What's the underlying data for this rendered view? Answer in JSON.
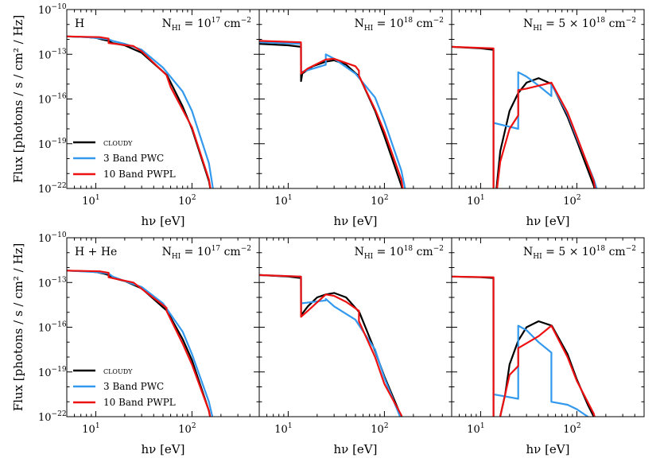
{
  "figure": {
    "ylabel": "Flux [photons / s / cm² / Hz]",
    "xlabel": "hν [eV]"
  },
  "legend": [
    {
      "label": "cloudy",
      "color": "#000000"
    },
    {
      "label": "3 Band PWC",
      "color": "#3399ee"
    },
    {
      "label": "10 Band PWPL",
      "color": "#ee1111"
    }
  ],
  "y_ticks": [
    {
      "exp": -10,
      "label_base": "10",
      "label_exp": "−10"
    },
    {
      "exp": -13,
      "label_base": "10",
      "label_exp": "−13"
    },
    {
      "exp": -16,
      "label_base": "10",
      "label_exp": "−16"
    },
    {
      "exp": -19,
      "label_base": "10",
      "label_exp": "−19"
    },
    {
      "exp": -22,
      "label_base": "10",
      "label_exp": "−22"
    }
  ],
  "x_ticks": [
    {
      "value": 10,
      "label_base": "10",
      "label_exp": "1"
    },
    {
      "value": 100,
      "label_base": "10",
      "label_exp": "2"
    }
  ],
  "chart_data": [
    {
      "type": "line",
      "row": "H",
      "col": 1,
      "species_label": "H",
      "column_text": "N",
      "column_sub": "HI",
      "column_eq": " = 10",
      "column_exp": "17",
      "column_unit": " cm",
      "column_unit_exp": "−2",
      "xlim": [
        5,
        500
      ],
      "ylim_log10": [
        -22,
        -10
      ],
      "series": [
        {
          "name": "cloudy",
          "x": [
            5,
            8,
            10,
            11.5,
            13.6,
            15,
            20,
            30,
            55,
            80,
            100,
            150,
            160
          ],
          "y": [
            -11.8,
            -11.85,
            -11.9,
            -12.0,
            -12.1,
            -12.25,
            -12.4,
            -12.9,
            -14.4,
            -16.5,
            -18.0,
            -21.5,
            -22.5
          ]
        },
        {
          "name": "3 Band PWC",
          "x": [
            5,
            8,
            10,
            13.6,
            15,
            20,
            30,
            50,
            80,
            100,
            150,
            170
          ],
          "y": [
            -11.8,
            -11.85,
            -11.9,
            -12.0,
            -12.1,
            -12.3,
            -12.7,
            -13.9,
            -15.5,
            -16.8,
            -20.3,
            -22.5
          ]
        },
        {
          "name": "10 Band PWPL",
          "x": [
            5,
            11,
            13.6,
            13.61,
            24.6,
            30,
            54.4,
            60,
            100,
            150,
            160
          ],
          "y": [
            -11.8,
            -11.85,
            -11.95,
            -12.25,
            -12.45,
            -12.8,
            -14.4,
            -15.2,
            -17.9,
            -21.4,
            -22.5
          ]
        }
      ]
    },
    {
      "type": "line",
      "row": "H",
      "col": 2,
      "species_label": "",
      "column_text": "N",
      "column_sub": "HI",
      "column_eq": " = 10",
      "column_exp": "18",
      "column_unit": " cm",
      "column_unit_exp": "−2",
      "xlim": [
        5,
        500
      ],
      "ylim_log10": [
        -22,
        -10
      ],
      "series": [
        {
          "name": "cloudy",
          "x": [
            5,
            10,
            13.59,
            13.6,
            14,
            18,
            24.6,
            30,
            40,
            55,
            80,
            100,
            150,
            160
          ],
          "y": [
            -12.3,
            -12.4,
            -12.5,
            -14.8,
            -14.3,
            -13.8,
            -13.5,
            -13.4,
            -13.7,
            -14.5,
            -16.8,
            -18.5,
            -21.8,
            -22.5
          ]
        },
        {
          "name": "3 Band PWC",
          "x": [
            5,
            13.59,
            13.6,
            24.59,
            24.6,
            30,
            50,
            80,
            100,
            150,
            170
          ],
          "y": [
            -12.2,
            -12.3,
            -14.2,
            -13.7,
            -13.0,
            -13.3,
            -14.3,
            -15.9,
            -17.5,
            -20.8,
            -22.5
          ]
        },
        {
          "name": "10 Band PWPL",
          "x": [
            5,
            13.59,
            13.6,
            16,
            24.6,
            30,
            50,
            54.4,
            54.41,
            80,
            100,
            150,
            160
          ],
          "y": [
            -12.1,
            -12.2,
            -14.3,
            -13.95,
            -13.35,
            -13.3,
            -13.8,
            -14.1,
            -14.45,
            -16.7,
            -18.2,
            -21.4,
            -22.5
          ]
        }
      ]
    },
    {
      "type": "line",
      "row": "H",
      "col": 3,
      "species_label": "",
      "column_text": "N",
      "column_sub": "HI",
      "column_eq": " = 5 × 10",
      "column_exp": "18",
      "column_unit": " cm",
      "column_unit_exp": "−2",
      "xlim": [
        5,
        500
      ],
      "ylim_log10": [
        -22,
        -10
      ],
      "series": [
        {
          "name": "cloudy",
          "x": [
            5,
            10,
            13.59,
            13.6,
            16,
            20,
            24.6,
            30,
            40,
            55,
            80,
            100,
            150,
            160
          ],
          "y": [
            -12.5,
            -12.6,
            -12.7,
            -24,
            -19.5,
            -16.8,
            -15.6,
            -14.9,
            -14.6,
            -15.0,
            -17.2,
            -18.8,
            -21.8,
            -22.5
          ]
        },
        {
          "name": "3 Band PWC",
          "x": [
            13.6,
            24.59,
            24.6,
            30,
            40,
            54.39,
            54.4,
            80,
            100,
            150,
            170
          ],
          "y": [
            -17.6,
            -18.0,
            -14.2,
            -14.5,
            -15.1,
            -15.8,
            -15.0,
            -17.0,
            -18.6,
            -21.4,
            -22.5
          ]
        },
        {
          "name": "10 Band PWPL",
          "x": [
            5,
            13.59,
            13.6,
            13.61,
            16,
            20,
            24.59,
            24.6,
            30,
            54.4,
            80,
            100,
            150,
            160
          ],
          "y": [
            -12.5,
            -12.6,
            -12.6,
            -24,
            -20.2,
            -18.0,
            -17.1,
            -15.4,
            -15.3,
            -14.9,
            -16.9,
            -18.5,
            -21.5,
            -22.5
          ]
        }
      ]
    },
    {
      "type": "line",
      "row": "H + He",
      "col": 1,
      "species_label": "H + He",
      "column_text": "N",
      "column_sub": "HI",
      "column_eq": " = 10",
      "column_exp": "17",
      "column_unit": " cm",
      "column_unit_exp": "−2",
      "xlim": [
        5,
        500
      ],
      "ylim_log10": [
        -22,
        -10
      ],
      "series": [
        {
          "name": "cloudy",
          "x": [
            5,
            8,
            10,
            12,
            13.6,
            15,
            20,
            30,
            55,
            80,
            100,
            150,
            160
          ],
          "y": [
            -12.2,
            -12.25,
            -12.3,
            -12.4,
            -12.5,
            -12.7,
            -12.9,
            -13.4,
            -14.9,
            -16.8,
            -18.2,
            -21.6,
            -22.5
          ]
        },
        {
          "name": "3 Band PWC",
          "x": [
            5,
            10,
            13.6,
            15,
            20,
            30,
            50,
            80,
            100,
            150,
            170
          ],
          "y": [
            -12.2,
            -12.3,
            -12.4,
            -12.6,
            -12.9,
            -13.3,
            -14.4,
            -16.3,
            -17.8,
            -21.0,
            -22.5
          ]
        },
        {
          "name": "10 Band PWPL",
          "x": [
            5,
            11,
            13.6,
            13.61,
            24.6,
            54.4,
            54.41,
            80,
            100,
            150,
            160
          ],
          "y": [
            -12.2,
            -12.25,
            -12.35,
            -12.65,
            -13.0,
            -14.7,
            -14.9,
            -17.1,
            -18.5,
            -21.6,
            -22.5
          ]
        }
      ]
    },
    {
      "type": "line",
      "row": "H + He",
      "col": 2,
      "species_label": "",
      "column_text": "N",
      "column_sub": "HI",
      "column_eq": " = 10",
      "column_exp": "18",
      "column_unit": " cm",
      "column_unit_exp": "−2",
      "xlim": [
        5,
        500
      ],
      "ylim_log10": [
        -22,
        -10
      ],
      "series": [
        {
          "name": "cloudy",
          "x": [
            5,
            10,
            13.59,
            13.6,
            16,
            20,
            24.6,
            30,
            40,
            55,
            80,
            100,
            150,
            160
          ],
          "y": [
            -12.5,
            -12.6,
            -12.7,
            -15.2,
            -14.6,
            -14.0,
            -13.8,
            -13.7,
            -14.0,
            -15.0,
            -17.6,
            -19.3,
            -22.0,
            -22.5
          ]
        },
        {
          "name": "3 Band PWC",
          "x": [
            5,
            13.59,
            13.6,
            24.59,
            24.6,
            30,
            50,
            80,
            100,
            150,
            170
          ],
          "y": [
            -12.5,
            -12.6,
            -14.4,
            -14.2,
            -14.1,
            -14.6,
            -15.5,
            -17.5,
            -19.4,
            -22.2,
            -22.5
          ]
        },
        {
          "name": "10 Band PWPL",
          "x": [
            5,
            13.59,
            13.6,
            16,
            24.6,
            30,
            40,
            54.4,
            54.41,
            80,
            100,
            150,
            160
          ],
          "y": [
            -12.5,
            -12.6,
            -15.3,
            -14.9,
            -13.8,
            -13.9,
            -14.3,
            -14.9,
            -15.6,
            -18.0,
            -19.8,
            -21.9,
            -22.5
          ]
        }
      ]
    },
    {
      "type": "line",
      "row": "H + He",
      "col": 3,
      "species_label": "",
      "column_text": "N",
      "column_sub": "HI",
      "column_eq": " = 5 × 10",
      "column_exp": "18",
      "column_unit": " cm",
      "column_unit_exp": "−2",
      "xlim": [
        5,
        500
      ],
      "ylim_log10": [
        -22,
        -10
      ],
      "series": [
        {
          "name": "cloudy",
          "x": [
            5,
            10,
            13.59,
            13.6,
            18,
            20,
            24.6,
            30,
            40,
            55,
            80,
            100,
            130,
            150,
            160
          ],
          "y": [
            -12.6,
            -12.65,
            -12.7,
            -24,
            -20.5,
            -18.5,
            -16.9,
            -16.0,
            -15.6,
            -15.9,
            -17.8,
            -19.5,
            -21.2,
            -22.0,
            -22.5
          ]
        },
        {
          "name": "3 Band PWC",
          "x": [
            13.6,
            24.59,
            24.6,
            30,
            40,
            54.39,
            54.4,
            80,
            100,
            130,
            150
          ],
          "y": [
            -20.5,
            -20.8,
            -15.9,
            -16.2,
            -17.0,
            -17.7,
            -21.0,
            -21.2,
            -21.5,
            -22.0,
            -22.5
          ]
        },
        {
          "name": "10 Band PWPL",
          "x": [
            5,
            13.59,
            13.6,
            13.61,
            20,
            24.59,
            24.6,
            40,
            54.4,
            80,
            100,
            150,
            160
          ],
          "y": [
            -12.6,
            -12.65,
            -12.65,
            -24,
            -19.2,
            -18.6,
            -17.4,
            -16.6,
            -15.9,
            -18.0,
            -19.6,
            -21.8,
            -22.5
          ]
        }
      ]
    }
  ]
}
